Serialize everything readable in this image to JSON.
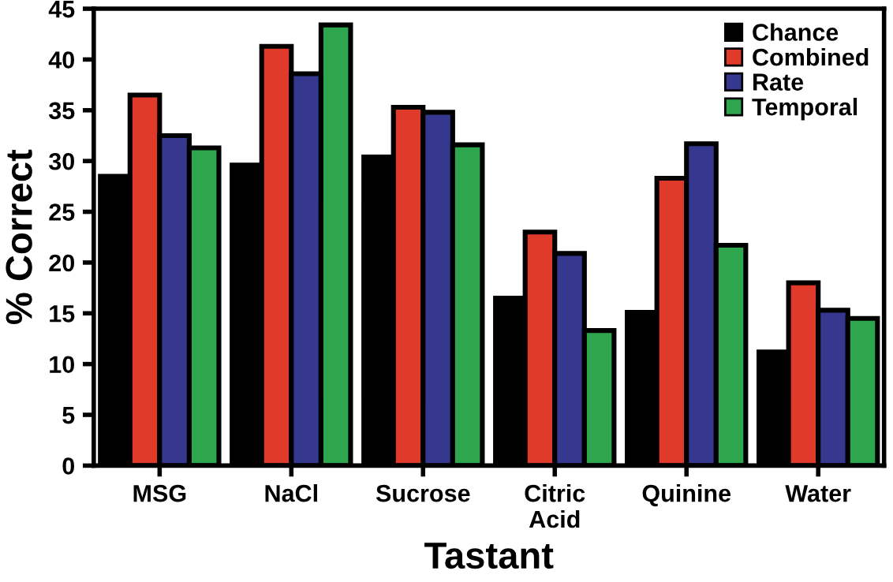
{
  "chart_data": {
    "type": "bar",
    "xlabel": "Tastant",
    "ylabel": "% Correct",
    "categories": [
      "MSG",
      "NaCl",
      "Sucrose",
      "Citric\nAcid",
      "Quinine",
      "Water"
    ],
    "series": [
      {
        "name": "Chance",
        "color": "#000000",
        "values": [
          28.5,
          29.6,
          30.4,
          16.5,
          15.1,
          11.2
        ]
      },
      {
        "name": "Combined",
        "color": "#e03a2a",
        "values": [
          36.5,
          41.3,
          35.3,
          23.0,
          28.3,
          18.0
        ]
      },
      {
        "name": "Rate",
        "color": "#36388f",
        "values": [
          32.5,
          38.6,
          34.8,
          20.9,
          31.7,
          15.3
        ]
      },
      {
        "name": "Temporal",
        "color": "#2ea64e",
        "values": [
          31.3,
          43.4,
          31.6,
          13.3,
          21.7,
          14.5
        ]
      }
    ],
    "ylim": [
      0,
      45
    ],
    "yticks": [
      0,
      5,
      10,
      15,
      20,
      25,
      30,
      35,
      40,
      45
    ],
    "grid": false,
    "legend": "top right"
  }
}
